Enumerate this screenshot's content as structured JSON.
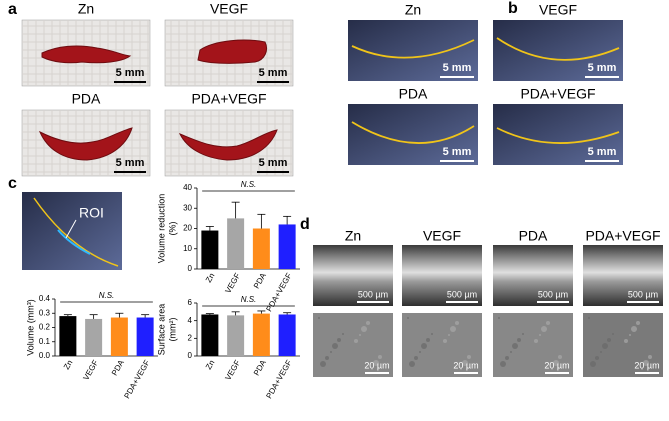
{
  "panels": {
    "a": {
      "label": "a",
      "images": [
        {
          "label": "Zn",
          "scale": "5 mm"
        },
        {
          "label": "VEGF",
          "scale": "5 mm"
        },
        {
          "label": "PDA",
          "scale": "5 mm"
        },
        {
          "label": "PDA+VEGF",
          "scale": "5 mm"
        }
      ]
    },
    "b": {
      "label": "b",
      "images": [
        {
          "label": "Zn",
          "scale": "5 mm"
        },
        {
          "label": "VEGF",
          "scale": "5 mm"
        },
        {
          "label": "PDA",
          "scale": "5 mm"
        },
        {
          "label": "PDA+VEGF",
          "scale": "5 mm"
        }
      ]
    },
    "c": {
      "label": "c",
      "roi": "ROI"
    },
    "d": {
      "label": "d",
      "columns": [
        {
          "label": "Zn",
          "scale_top": "500 µm",
          "scale_bottom": "20 µm"
        },
        {
          "label": "VEGF",
          "scale_top": "500 µm",
          "scale_bottom": "20 µm"
        },
        {
          "label": "PDA",
          "scale_top": "500 µm",
          "scale_bottom": "20 µm"
        },
        {
          "label": "PDA+VEGF",
          "scale_top": "500 µm",
          "scale_bottom": "20 µm"
        }
      ]
    }
  },
  "chart_data": [
    {
      "type": "bar",
      "ylabel": [
        "Volume reduction",
        "(%)"
      ],
      "annotation": "N.S.",
      "categories": [
        "Zn",
        "VEGF",
        "PDA",
        "PDA+VEGF"
      ],
      "values": [
        19,
        25,
        20,
        22
      ],
      "errors": [
        2,
        8,
        7,
        4
      ],
      "colors": [
        "#000000",
        "#a6a6a6",
        "#ff8c1a",
        "#1f1fff"
      ],
      "ylim": [
        0,
        40
      ],
      "yticks": [
        0,
        10,
        20,
        30,
        40
      ]
    },
    {
      "type": "bar",
      "ylabel": [
        "Volume (mm³)"
      ],
      "annotation": "N.S.",
      "categories": [
        "Zn",
        "VEGF",
        "PDA",
        "PDA+VEGF"
      ],
      "values": [
        0.28,
        0.26,
        0.27,
        0.27
      ],
      "errors": [
        0.01,
        0.03,
        0.03,
        0.02
      ],
      "colors": [
        "#000000",
        "#a6a6a6",
        "#ff8c1a",
        "#1f1fff"
      ],
      "ylim": [
        0,
        0.4
      ],
      "yticks": [
        {
          "value": 0,
          "label": "0.0"
        },
        0.1,
        0.2,
        0.3,
        0.4
      ]
    },
    {
      "type": "bar",
      "ylabel": [
        "Surface area",
        "(mm²)"
      ],
      "annotation": "N.S.",
      "categories": [
        "Zn",
        "VEGF",
        "PDA",
        "PDA+VEGF"
      ],
      "values": [
        4.7,
        4.6,
        4.8,
        4.7
      ],
      "errors": [
        0.1,
        0.4,
        0.3,
        0.2
      ],
      "colors": [
        "#000000",
        "#a6a6a6",
        "#ff8c1a",
        "#1f1fff"
      ],
      "ylim": [
        0,
        6
      ],
      "yticks": [
        0,
        2,
        4,
        6
      ]
    }
  ]
}
